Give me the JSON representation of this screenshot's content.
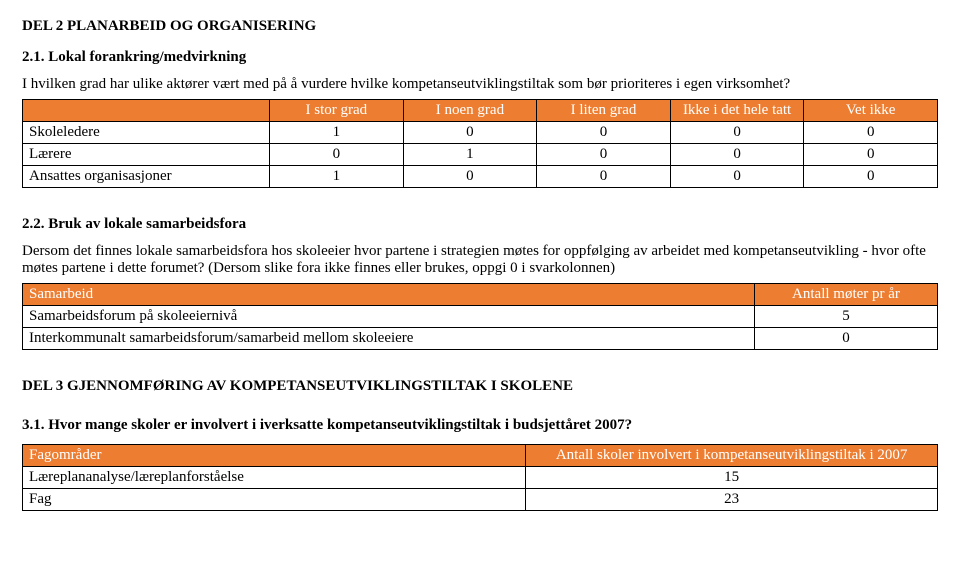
{
  "del2": {
    "title": "DEL 2 PLANARBEID OG ORGANISERING",
    "s21": {
      "title": "2.1. Lokal forankring/medvirkning",
      "question": "I hvilken grad har ulike aktører vært med på å vurdere hvilke kompetanseutviklingstiltak som bør prioriteres i egen virksomhet?",
      "headers": [
        "",
        "I stor grad",
        "I noen grad",
        "I liten grad",
        "Ikke i det hele tatt",
        "Vet ikke"
      ],
      "rows": [
        {
          "label": "Skoleledere",
          "vals": [
            "1",
            "0",
            "0",
            "0",
            "0"
          ]
        },
        {
          "label": "Lærere",
          "vals": [
            "0",
            "1",
            "0",
            "0",
            "0"
          ]
        },
        {
          "label": "Ansattes organisasjoner",
          "vals": [
            "1",
            "0",
            "0",
            "0",
            "0"
          ]
        }
      ]
    },
    "s22": {
      "title": "2.2. Bruk av lokale samarbeidsfora",
      "question": "Dersom det finnes lokale samarbeidsfora hos skoleeier hvor partene i strategien møtes for oppfølging av arbeidet med kompetanseutvikling - hvor ofte møtes partene i dette forumet? (Dersom slike fora ikke finnes eller brukes, oppgi 0 i svarkolonnen)",
      "headers": [
        "Samarbeid",
        "Antall møter pr år"
      ],
      "rows": [
        {
          "label": "Samarbeidsforum på skoleeiernivå",
          "val": "5"
        },
        {
          "label": "Interkommunalt samarbeidsforum/samarbeid mellom skoleeiere",
          "val": "0"
        }
      ]
    }
  },
  "del3": {
    "title": "DEL 3 GJENNOMFØRING AV KOMPETANSEUTVIKLINGSTILTAK I SKOLENE",
    "s31": {
      "title": "3.1. Hvor mange skoler er involvert i iverksatte kompetanseutviklingstiltak i budsjettåret 2007?",
      "headers": [
        "Fagområder",
        "Antall skoler involvert i kompetanseutviklingstiltak i 2007"
      ],
      "rows": [
        {
          "label": "Læreplananalyse/læreplanforståelse",
          "val": "15"
        },
        {
          "label": "Fag",
          "val": "23"
        }
      ]
    }
  },
  "colors": {
    "header_bg": "#ed7d31",
    "header_text": "#ffffff",
    "border": "#000000",
    "body_text": "#000000",
    "background": "#ffffff"
  }
}
